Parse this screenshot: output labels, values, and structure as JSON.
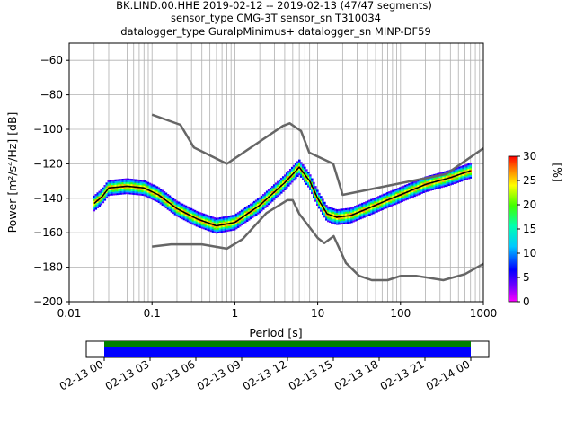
{
  "title_lines": [
    "BK.LIND.00.HHE   2019-02-12 -- 2019-02-13  (47/47 segments)",
    "sensor_type CMG-3T sensor_sn T310034",
    "datalogger_type GuralpMinimus+ datalogger_sn MINP-DF59"
  ],
  "chart_data": [
    {
      "type": "heatmap",
      "xlabel": "Period [s]",
      "ylabel": "Power [m²/s⁴/Hz] [dB]",
      "xscale": "log",
      "xlim": [
        0.01,
        1000
      ],
      "ylim": [
        -200,
        -50
      ],
      "x_tick_labels": [
        "0.01",
        "0.1",
        "1",
        "10",
        "100",
        "1000"
      ],
      "y_ticks": [
        -200,
        -180,
        -160,
        -140,
        -120,
        -100,
        -80,
        -60
      ],
      "grid": true,
      "colorbar": {
        "label": "[%]",
        "range": [
          0,
          30
        ],
        "ticks": [
          0,
          5,
          10,
          15,
          20,
          25,
          30
        ],
        "placement": "right"
      },
      "series": [
        {
          "role": "NHNM",
          "color": "#666666",
          "points": [
            [
              0.1,
              -91.5
            ],
            [
              0.22,
              -97.4
            ],
            [
              0.32,
              -110.5
            ],
            [
              0.8,
              -120
            ],
            [
              3.8,
              -98
            ],
            [
              4.6,
              -96.5
            ],
            [
              6.3,
              -101
            ],
            [
              7.9,
              -113.5
            ],
            [
              15.4,
              -120
            ],
            [
              20,
              -138
            ],
            [
              354.8,
              -126
            ],
            [
              1000,
              -111
            ]
          ]
        },
        {
          "role": "NLNM",
          "color": "#666666",
          "points": [
            [
              0.1,
              -168
            ],
            [
              0.17,
              -166.7
            ],
            [
              0.4,
              -166.7
            ],
            [
              0.8,
              -169.2
            ],
            [
              1.24,
              -163.7
            ],
            [
              2.4,
              -148.6
            ],
            [
              4.3,
              -141.1
            ],
            [
              5,
              -141.1
            ],
            [
              6,
              -149
            ],
            [
              10,
              -163
            ],
            [
              12,
              -166
            ],
            [
              15.6,
              -162
            ],
            [
              21.9,
              -177.5
            ],
            [
              31.6,
              -185
            ],
            [
              45,
              -187.5
            ],
            [
              70,
              -187.5
            ],
            [
              101,
              -185
            ],
            [
              154,
              -185
            ],
            [
              328,
              -187.5
            ],
            [
              600,
              -184
            ],
            [
              1000,
              -178
            ]
          ]
        },
        {
          "role": "mode",
          "color": "#000000",
          "points": [
            [
              0.02,
              -143
            ],
            [
              0.025,
              -139
            ],
            [
              0.03,
              -134
            ],
            [
              0.05,
              -133
            ],
            [
              0.08,
              -134
            ],
            [
              0.12,
              -138
            ],
            [
              0.2,
              -146
            ],
            [
              0.35,
              -152
            ],
            [
              0.6,
              -156
            ],
            [
              1,
              -154
            ],
            [
              2,
              -144
            ],
            [
              4,
              -131
            ],
            [
              6,
              -122
            ],
            [
              8,
              -130
            ],
            [
              10,
              -140
            ],
            [
              13,
              -149
            ],
            [
              17,
              -151
            ],
            [
              25,
              -150
            ],
            [
              40,
              -146
            ],
            [
              70,
              -141
            ],
            [
              100,
              -138
            ],
            [
              200,
              -132
            ],
            [
              400,
              -128
            ],
            [
              700,
              -124
            ]
          ]
        }
      ]
    },
    {
      "type": "timeline",
      "x_tick_labels": [
        "02-13 00",
        "02-13 03",
        "02-13 06",
        "02-13 09",
        "02-13 12",
        "02-13 15",
        "02-13 18",
        "02-13 21",
        "02-14 00"
      ],
      "start": "02-13 00",
      "end": "02-14 00",
      "bands": [
        {
          "color": "#008000"
        },
        {
          "color": "#0000ff"
        }
      ]
    }
  ]
}
